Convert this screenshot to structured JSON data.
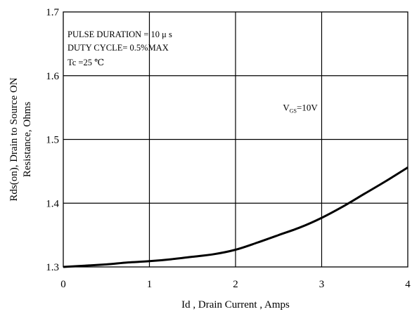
{
  "chart_data": {
    "type": "line",
    "xlabel": "Id , Drain Current , Amps",
    "ylabel_lines": [
      "Rds(on), Drain to Source ON",
      "Resistance, Ohms"
    ],
    "xlim": [
      0,
      4
    ],
    "ylim": [
      1.3,
      1.7
    ],
    "xticks": [
      "0",
      "1",
      "2",
      "3",
      "4"
    ],
    "yticks": [
      "1.3",
      "1.4",
      "1.5",
      "1.6",
      "1.7"
    ],
    "grid": true,
    "conditions": [
      "PULSE   DURATION = 10 μ s",
      "DUTY   CYCLE= 0.5%MAX",
      "Tc =25  ℃"
    ],
    "annotation": {
      "main": "V",
      "sub": "GS",
      "rest": "=10V",
      "x": 2.55,
      "y": 1.545
    },
    "series": [
      {
        "x": [
          0,
          0.25,
          0.5,
          0.75,
          1.0,
          1.25,
          1.5,
          1.75,
          2.0,
          2.25,
          2.5,
          2.75,
          3.0,
          3.25,
          3.5,
          3.75,
          4.0
        ],
        "y": [
          1.3,
          1.302,
          1.304,
          1.307,
          1.309,
          1.312,
          1.316,
          1.32,
          1.327,
          1.338,
          1.35,
          1.362,
          1.377,
          1.395,
          1.415,
          1.435,
          1.456
        ]
      }
    ]
  }
}
